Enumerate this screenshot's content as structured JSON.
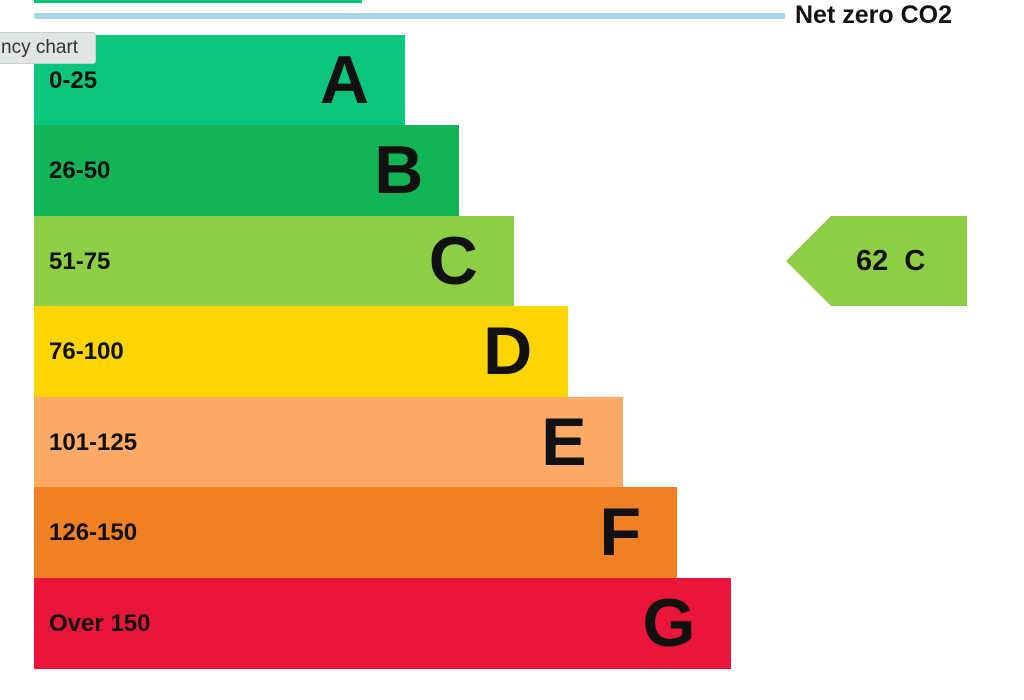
{
  "tooltip": "ncy chart",
  "chart_data": {
    "type": "bar",
    "legend_label": "Net zero CO2",
    "categories": [
      "A",
      "B",
      "C",
      "D",
      "E",
      "F",
      "G"
    ],
    "ranges": [
      "0-25",
      "26-50",
      "51-75",
      "76-100",
      "101-125",
      "126-150",
      "Over 150"
    ],
    "colors": [
      "#0ac67d",
      "#13b457",
      "#8dce46",
      "#ffd500",
      "#fcaa65",
      "#ef8023",
      "#e9153b"
    ],
    "current": {
      "value": "62",
      "band": "C",
      "color": "#8dce46"
    }
  }
}
